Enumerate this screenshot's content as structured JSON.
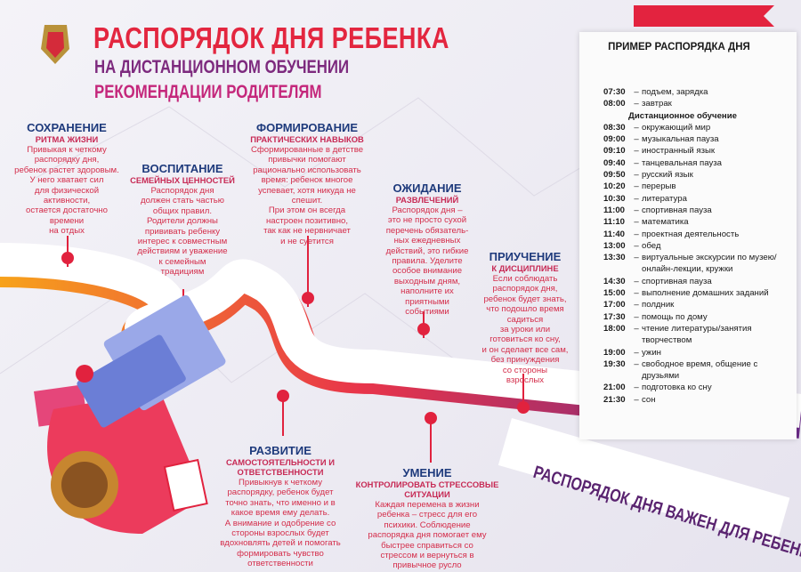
{
  "header": {
    "title": "РАСПОРЯДОК ДНЯ РЕБЕНКА",
    "subtitle": "НА ДИСТАНЦИОННОМ ОБУЧЕНИИ",
    "subtitle2": "РЕКОМЕНДАЦИИ РОДИТЕЛЯМ"
  },
  "sections": [
    {
      "title": "СОХРАНЕНИЕ",
      "subtitle": "РИТМА ЖИЗНИ",
      "lines": [
        "Привыкая к четкому",
        "распорядку дня,",
        "ребенок растет здоровым.",
        "У него хватает сил",
        "для физической",
        "активности,",
        "остается достаточно",
        "времени",
        "на отдых"
      ]
    },
    {
      "title": "ВОСПИТАНИЕ",
      "subtitle": "СЕМЕЙНЫХ ЦЕННОСТЕЙ",
      "lines": [
        "Распорядок дня",
        "должен стать частью",
        "общих правил.",
        "Родители должны",
        "прививать ребенку",
        "интерес к совместным",
        "действиям и уважение",
        "к семейным",
        "традициям"
      ]
    },
    {
      "title": "ФОРМИРОВАНИЕ",
      "subtitle": "ПРАКТИЧЕСКИХ НАВЫКОВ",
      "lines": [
        "Сформированные в детстве",
        "привычки помогают",
        "рационально использовать",
        "время: ребенок многое",
        "успевает, хотя никуда не",
        "спешит.",
        "При этом он всегда",
        "настроен позитивно,",
        "так как не нервничает",
        "и не суетится"
      ]
    },
    {
      "title": "ОЖИДАНИЕ",
      "subtitle": "РАЗВЛЕЧЕНИЙ",
      "lines": [
        "Распорядок дня –",
        "это не просто сухой",
        "перечень обязатель-",
        "ных ежедневных",
        "действий, это гибкие",
        "правила. Уделите",
        "особое внимание",
        "выходным дням,",
        "наполните их",
        "приятными",
        "событиями"
      ]
    },
    {
      "title": "ПРИУЧЕНИЕ",
      "subtitle": "К ДИСЦИПЛИНЕ",
      "lines": [
        "Если соблюдать",
        "распорядок дня,",
        "ребенок будет знать,",
        "что подошло время",
        "садиться",
        "за уроки или",
        "готовиться ко сну,",
        "и он сделает все сам,",
        "без принуждения",
        "со стороны",
        "взрослых"
      ]
    },
    {
      "title": "РАЗВИТИЕ",
      "subtitle": "САМОСТОЯТЕЛЬНОСТИ И ОТВЕТСТВЕННОСТИ",
      "lines": [
        "Привыкнув к четкому",
        "распорядку, ребенок будет",
        "точно знать, что именно и в",
        "какое время ему делать.",
        "А внимание и одобрение со",
        "стороны взрослых будет",
        "вдохновлять детей и помогать",
        "формировать чувство",
        "ответственности"
      ]
    },
    {
      "title": "УМЕНИЕ",
      "subtitle": "КОНТРОЛИРОВАТЬ СТРЕССОВЫЕ СИТУАЦИИ",
      "lines": [
        "Каждая перемена в жизни",
        "ребенка – стресс для его",
        "психики. Соблюдение",
        "распорядка дня помогает ему",
        "быстрее справиться со",
        "стрессом и вернуться в",
        "привычное русло"
      ]
    }
  ],
  "schedule": {
    "title": "ПРИМЕР РАСПОРЯДКА ДНЯ",
    "separator": "–",
    "items": [
      {
        "time": "07:30",
        "activity": "подъем, зарядка"
      },
      {
        "time": "08:00",
        "activity": "завтрак"
      },
      {
        "heading": "Дистанционное обучение"
      },
      {
        "time": "08:30",
        "activity": "окружающий мир"
      },
      {
        "time": "09:00",
        "activity": "музыкальная пауза"
      },
      {
        "time": "09:10",
        "activity": "иностранный язык"
      },
      {
        "time": "09:40",
        "activity": "танцевальная пауза"
      },
      {
        "time": "09:50",
        "activity": "русский язык"
      },
      {
        "time": "10:20",
        "activity": "перерыв"
      },
      {
        "time": "10:30",
        "activity": "литература"
      },
      {
        "time": "11:00",
        "activity": "спортивная пауза"
      },
      {
        "time": "11:10",
        "activity": "математика"
      },
      {
        "time": "11:40",
        "activity": "проектная деятельность"
      },
      {
        "time": "13:00",
        "activity": "обед"
      },
      {
        "time": "13:30",
        "activity": "виртуальные экскурсии по музею/онлайн-лекции, кружки"
      },
      {
        "time": "14:30",
        "activity": "спортивная пауза"
      },
      {
        "time": "15:00",
        "activity": "выполнение домашних заданий"
      },
      {
        "time": "17:00",
        "activity": "полдник"
      },
      {
        "time": "17:30",
        "activity": "помощь по дому"
      },
      {
        "time": "18:00",
        "activity": "чтение литературы/занятия творчеством"
      },
      {
        "time": "19:00",
        "activity": "ужин"
      },
      {
        "time": "19:30",
        "activity": "свободное время, общение с друзьями"
      },
      {
        "time": "21:00",
        "activity": "подготовка ко сну"
      },
      {
        "time": "21:30",
        "activity": "сон"
      }
    ]
  },
  "banner": "РАСПОРЯДОК ДНЯ ВАЖЕН ДЛЯ РЕБЕНКА"
}
